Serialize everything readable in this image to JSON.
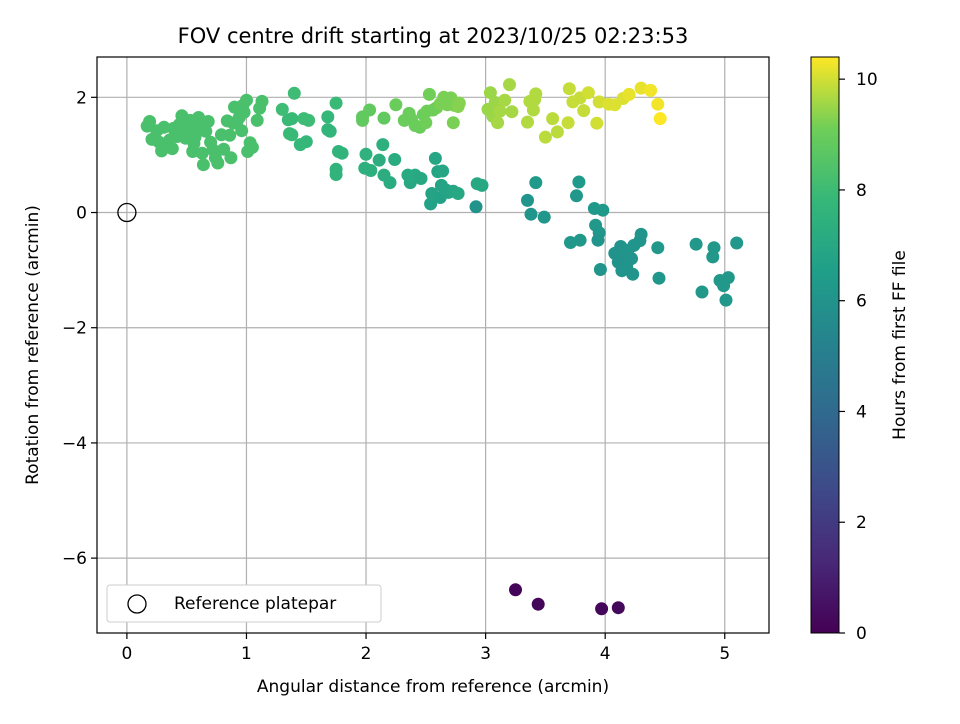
{
  "chart_data": {
    "type": "scatter",
    "title": "FOV centre drift starting at 2023/10/25 02:23:53",
    "xlabel": "Angular distance from reference (arcmin)",
    "ylabel": "Rotation from reference (arcmin)",
    "xlim": [
      -0.25,
      5.37
    ],
    "ylim": [
      -7.3,
      2.7
    ],
    "xticks": [
      0,
      1,
      2,
      3,
      4,
      5
    ],
    "yticks": [
      -6,
      -4,
      -2,
      0,
      2
    ],
    "grid": true,
    "legend": {
      "position": "lower-left",
      "label": "Reference platepar"
    },
    "reference_point": {
      "x": 0,
      "y": 0
    },
    "colorbar": {
      "label": "Hours from first FF file",
      "colormap": "viridis",
      "range": [
        0,
        10.4
      ],
      "ticks": [
        0,
        2,
        4,
        6,
        8,
        10
      ]
    },
    "points": [
      {
        "x": 3.25,
        "y": -6.55,
        "c": 0.1
      },
      {
        "x": 3.44,
        "y": -6.8,
        "c": 0.15
      },
      {
        "x": 3.97,
        "y": -6.88,
        "c": 0.2
      },
      {
        "x": 4.11,
        "y": -6.86,
        "c": 0.25
      },
      {
        "x": 2.92,
        "y": 0.1,
        "c": 6.0
      },
      {
        "x": 3.35,
        "y": 0.21,
        "c": 6.1
      },
      {
        "x": 3.38,
        "y": -0.03,
        "c": 6.1
      },
      {
        "x": 3.49,
        "y": -0.08,
        "c": 6.15
      },
      {
        "x": 3.71,
        "y": -0.52,
        "c": 6.2
      },
      {
        "x": 3.79,
        "y": -0.48,
        "c": 6.2
      },
      {
        "x": 3.76,
        "y": 0.29,
        "c": 6.2
      },
      {
        "x": 3.42,
        "y": 0.52,
        "c": 6.3
      },
      {
        "x": 3.78,
        "y": 0.53,
        "c": 6.3
      },
      {
        "x": 3.91,
        "y": 0.07,
        "c": 6.25
      },
      {
        "x": 3.98,
        "y": 0.04,
        "c": 6.25
      },
      {
        "x": 3.92,
        "y": -0.22,
        "c": 6.2
      },
      {
        "x": 3.95,
        "y": -0.35,
        "c": 6.15
      },
      {
        "x": 3.94,
        "y": -0.48,
        "c": 6.1
      },
      {
        "x": 3.96,
        "y": -0.99,
        "c": 6.1
      },
      {
        "x": 4.08,
        "y": -0.71,
        "c": 6.0
      },
      {
        "x": 4.13,
        "y": -0.59,
        "c": 6.0
      },
      {
        "x": 4.15,
        "y": -0.78,
        "c": 6.0
      },
      {
        "x": 4.11,
        "y": -0.86,
        "c": 6.0
      },
      {
        "x": 4.18,
        "y": -0.95,
        "c": 6.05
      },
      {
        "x": 4.22,
        "y": -0.8,
        "c": 6.05
      },
      {
        "x": 4.14,
        "y": -1.01,
        "c": 6.1
      },
      {
        "x": 4.23,
        "y": -1.07,
        "c": 6.1
      },
      {
        "x": 4.19,
        "y": -0.66,
        "c": 6.05
      },
      {
        "x": 4.24,
        "y": -0.57,
        "c": 6.1
      },
      {
        "x": 4.29,
        "y": -0.49,
        "c": 6.1
      },
      {
        "x": 4.3,
        "y": -0.38,
        "c": 6.1
      },
      {
        "x": 4.44,
        "y": -0.61,
        "c": 6.2
      },
      {
        "x": 4.45,
        "y": -1.14,
        "c": 6.15
      },
      {
        "x": 4.76,
        "y": -0.55,
        "c": 6.2
      },
      {
        "x": 4.81,
        "y": -1.38,
        "c": 6.2
      },
      {
        "x": 4.9,
        "y": -0.77,
        "c": 6.2
      },
      {
        "x": 4.91,
        "y": -0.61,
        "c": 6.2
      },
      {
        "x": 4.96,
        "y": -1.18,
        "c": 6.2
      },
      {
        "x": 4.99,
        "y": -1.27,
        "c": 6.2
      },
      {
        "x": 5.01,
        "y": -1.52,
        "c": 6.2
      },
      {
        "x": 5.03,
        "y": -1.13,
        "c": 6.2
      },
      {
        "x": 5.1,
        "y": -0.53,
        "c": 6.2
      },
      {
        "x": 2.54,
        "y": 0.15,
        "c": 6.7
      },
      {
        "x": 2.55,
        "y": 0.33,
        "c": 6.8
      },
      {
        "x": 2.58,
        "y": 0.94,
        "c": 6.9
      },
      {
        "x": 2.6,
        "y": 0.71,
        "c": 6.8
      },
      {
        "x": 2.62,
        "y": 0.26,
        "c": 6.7
      },
      {
        "x": 2.63,
        "y": 0.47,
        "c": 6.8
      },
      {
        "x": 2.64,
        "y": 0.72,
        "c": 6.9
      },
      {
        "x": 2.67,
        "y": 0.39,
        "c": 6.8
      },
      {
        "x": 2.69,
        "y": 0.35,
        "c": 6.8
      },
      {
        "x": 2.73,
        "y": 0.37,
        "c": 6.9
      },
      {
        "x": 2.77,
        "y": 0.33,
        "c": 7.0
      },
      {
        "x": 2.93,
        "y": 0.5,
        "c": 7.0
      },
      {
        "x": 2.97,
        "y": 0.47,
        "c": 7.0
      },
      {
        "x": 2.37,
        "y": 0.52,
        "c": 7.0
      },
      {
        "x": 2.35,
        "y": 0.65,
        "c": 7.1
      },
      {
        "x": 2.41,
        "y": 0.65,
        "c": 7.1
      },
      {
        "x": 2.46,
        "y": 0.59,
        "c": 7.0
      },
      {
        "x": 2.24,
        "y": 0.92,
        "c": 7.2
      },
      {
        "x": 2.2,
        "y": 0.52,
        "c": 7.2
      },
      {
        "x": 2.15,
        "y": 0.65,
        "c": 7.3
      },
      {
        "x": 2.11,
        "y": 0.91,
        "c": 7.3
      },
      {
        "x": 2.14,
        "y": 1.18,
        "c": 7.4
      },
      {
        "x": 2.04,
        "y": 0.73,
        "c": 7.4
      },
      {
        "x": 1.99,
        "y": 0.77,
        "c": 7.4
      },
      {
        "x": 2.0,
        "y": 1.01,
        "c": 7.5
      },
      {
        "x": 1.8,
        "y": 1.03,
        "c": 7.6
      },
      {
        "x": 1.77,
        "y": 1.06,
        "c": 7.6
      },
      {
        "x": 1.75,
        "y": 0.66,
        "c": 7.6
      },
      {
        "x": 1.75,
        "y": 0.75,
        "c": 7.6
      },
      {
        "x": 1.7,
        "y": 1.41,
        "c": 7.7
      },
      {
        "x": 1.68,
        "y": 1.44,
        "c": 7.7
      },
      {
        "x": 1.68,
        "y": 1.66,
        "c": 7.8
      },
      {
        "x": 1.75,
        "y": 1.9,
        "c": 7.9
      },
      {
        "x": 1.5,
        "y": 1.23,
        "c": 7.8
      },
      {
        "x": 1.45,
        "y": 1.18,
        "c": 7.8
      },
      {
        "x": 1.38,
        "y": 1.35,
        "c": 7.9
      },
      {
        "x": 1.36,
        "y": 1.37,
        "c": 7.9
      },
      {
        "x": 1.35,
        "y": 1.61,
        "c": 7.9
      },
      {
        "x": 1.38,
        "y": 1.63,
        "c": 7.9
      },
      {
        "x": 1.3,
        "y": 1.79,
        "c": 8.0
      },
      {
        "x": 1.4,
        "y": 2.07,
        "c": 8.0
      },
      {
        "x": 1.48,
        "y": 1.63,
        "c": 8.0
      },
      {
        "x": 1.52,
        "y": 1.6,
        "c": 8.0
      },
      {
        "x": 0.17,
        "y": 1.5,
        "c": 8.3
      },
      {
        "x": 0.19,
        "y": 1.58,
        "c": 8.3
      },
      {
        "x": 0.21,
        "y": 1.27,
        "c": 8.3
      },
      {
        "x": 0.25,
        "y": 1.42,
        "c": 8.3
      },
      {
        "x": 0.27,
        "y": 1.22,
        "c": 8.3
      },
      {
        "x": 0.29,
        "y": 1.07,
        "c": 8.3
      },
      {
        "x": 0.31,
        "y": 1.48,
        "c": 8.3
      },
      {
        "x": 0.33,
        "y": 1.15,
        "c": 8.3
      },
      {
        "x": 0.36,
        "y": 1.26,
        "c": 8.3
      },
      {
        "x": 0.38,
        "y": 1.11,
        "c": 8.3
      },
      {
        "x": 0.39,
        "y": 1.46,
        "c": 8.3
      },
      {
        "x": 0.42,
        "y": 1.32,
        "c": 8.3
      },
      {
        "x": 0.44,
        "y": 1.53,
        "c": 8.3
      },
      {
        "x": 0.46,
        "y": 1.4,
        "c": 8.3
      },
      {
        "x": 0.46,
        "y": 1.68,
        "c": 8.3
      },
      {
        "x": 0.49,
        "y": 1.29,
        "c": 8.3
      },
      {
        "x": 0.51,
        "y": 1.45,
        "c": 8.3
      },
      {
        "x": 0.53,
        "y": 1.6,
        "c": 8.3
      },
      {
        "x": 0.55,
        "y": 1.06,
        "c": 8.3
      },
      {
        "x": 0.56,
        "y": 1.2,
        "c": 8.3
      },
      {
        "x": 0.58,
        "y": 1.38,
        "c": 8.3
      },
      {
        "x": 0.6,
        "y": 1.65,
        "c": 8.3
      },
      {
        "x": 0.61,
        "y": 1.5,
        "c": 8.3
      },
      {
        "x": 0.63,
        "y": 1.03,
        "c": 8.3
      },
      {
        "x": 0.64,
        "y": 0.83,
        "c": 8.3
      },
      {
        "x": 0.66,
        "y": 1.41,
        "c": 8.3
      },
      {
        "x": 0.68,
        "y": 1.58,
        "c": 8.3
      },
      {
        "x": 0.7,
        "y": 1.22,
        "c": 8.3
      },
      {
        "x": 0.72,
        "y": 1.09,
        "c": 8.3
      },
      {
        "x": 0.74,
        "y": 0.95,
        "c": 8.3
      },
      {
        "x": 0.76,
        "y": 0.86,
        "c": 8.3
      },
      {
        "x": 0.79,
        "y": 1.35,
        "c": 8.3
      },
      {
        "x": 0.81,
        "y": 1.1,
        "c": 8.3
      },
      {
        "x": 0.84,
        "y": 1.59,
        "c": 8.3
      },
      {
        "x": 0.86,
        "y": 1.34,
        "c": 8.3
      },
      {
        "x": 0.87,
        "y": 0.95,
        "c": 8.3
      },
      {
        "x": 0.89,
        "y": 1.55,
        "c": 8.3
      },
      {
        "x": 0.92,
        "y": 1.58,
        "c": 8.3
      },
      {
        "x": 0.9,
        "y": 1.83,
        "c": 8.3
      },
      {
        "x": 0.94,
        "y": 1.65,
        "c": 8.3
      },
      {
        "x": 0.96,
        "y": 1.42,
        "c": 8.3
      },
      {
        "x": 0.97,
        "y": 1.86,
        "c": 8.3
      },
      {
        "x": 1.01,
        "y": 1.06,
        "c": 8.3
      },
      {
        "x": 1.03,
        "y": 1.21,
        "c": 8.3
      },
      {
        "x": 1.05,
        "y": 1.13,
        "c": 8.3
      },
      {
        "x": 1.09,
        "y": 1.6,
        "c": 8.3
      },
      {
        "x": 1.11,
        "y": 1.81,
        "c": 8.3
      },
      {
        "x": 1.13,
        "y": 1.93,
        "c": 8.3
      },
      {
        "x": 1.0,
        "y": 1.95,
        "c": 8.3
      },
      {
        "x": 0.98,
        "y": 1.74,
        "c": 8.3
      },
      {
        "x": 0.55,
        "y": 1.58,
        "c": 8.3
      },
      {
        "x": 0.57,
        "y": 1.31,
        "c": 8.3
      },
      {
        "x": 1.97,
        "y": 1.6,
        "c": 8.8
      },
      {
        "x": 1.97,
        "y": 1.66,
        "c": 8.8
      },
      {
        "x": 2.03,
        "y": 1.78,
        "c": 8.8
      },
      {
        "x": 2.15,
        "y": 1.64,
        "c": 8.8
      },
      {
        "x": 2.25,
        "y": 1.87,
        "c": 9.0
      },
      {
        "x": 2.32,
        "y": 1.6,
        "c": 9.0
      },
      {
        "x": 2.36,
        "y": 1.72,
        "c": 9.0
      },
      {
        "x": 2.38,
        "y": 1.62,
        "c": 9.0
      },
      {
        "x": 2.41,
        "y": 1.51,
        "c": 9.0
      },
      {
        "x": 2.45,
        "y": 1.48,
        "c": 9.0
      },
      {
        "x": 2.48,
        "y": 1.7,
        "c": 9.0
      },
      {
        "x": 2.5,
        "y": 1.56,
        "c": 9.1
      },
      {
        "x": 2.51,
        "y": 1.76,
        "c": 9.1
      },
      {
        "x": 2.53,
        "y": 2.05,
        "c": 9.1
      },
      {
        "x": 2.56,
        "y": 1.78,
        "c": 9.1
      },
      {
        "x": 2.59,
        "y": 1.82,
        "c": 9.1
      },
      {
        "x": 2.62,
        "y": 1.89,
        "c": 9.2
      },
      {
        "x": 2.65,
        "y": 2.0,
        "c": 9.2
      },
      {
        "x": 2.68,
        "y": 1.87,
        "c": 9.2
      },
      {
        "x": 2.71,
        "y": 1.99,
        "c": 9.2
      },
      {
        "x": 2.74,
        "y": 1.86,
        "c": 9.2
      },
      {
        "x": 2.73,
        "y": 1.56,
        "c": 9.2
      },
      {
        "x": 2.77,
        "y": 1.84,
        "c": 9.3
      },
      {
        "x": 2.78,
        "y": 1.9,
        "c": 9.3
      },
      {
        "x": 3.02,
        "y": 1.79,
        "c": 9.5
      },
      {
        "x": 3.04,
        "y": 2.08,
        "c": 9.5
      },
      {
        "x": 3.06,
        "y": 1.67,
        "c": 9.5
      },
      {
        "x": 3.08,
        "y": 1.91,
        "c": 9.5
      },
      {
        "x": 3.1,
        "y": 1.56,
        "c": 9.6
      },
      {
        "x": 3.12,
        "y": 1.76,
        "c": 9.6
      },
      {
        "x": 3.16,
        "y": 1.95,
        "c": 9.6
      },
      {
        "x": 3.2,
        "y": 2.22,
        "c": 9.6
      },
      {
        "x": 3.22,
        "y": 1.75,
        "c": 9.6
      },
      {
        "x": 3.35,
        "y": 1.57,
        "c": 9.7
      },
      {
        "x": 3.37,
        "y": 1.93,
        "c": 9.7
      },
      {
        "x": 3.4,
        "y": 1.78,
        "c": 9.7
      },
      {
        "x": 3.42,
        "y": 2.06,
        "c": 9.7
      },
      {
        "x": 3.41,
        "y": 1.96,
        "c": 9.7
      },
      {
        "x": 3.5,
        "y": 1.31,
        "c": 9.8
      },
      {
        "x": 3.56,
        "y": 1.63,
        "c": 9.8
      },
      {
        "x": 3.6,
        "y": 1.4,
        "c": 9.8
      },
      {
        "x": 3.69,
        "y": 1.56,
        "c": 9.9
      },
      {
        "x": 3.7,
        "y": 2.15,
        "c": 9.9
      },
      {
        "x": 3.73,
        "y": 1.92,
        "c": 9.9
      },
      {
        "x": 3.79,
        "y": 1.99,
        "c": 9.9
      },
      {
        "x": 3.82,
        "y": 1.77,
        "c": 9.9
      },
      {
        "x": 3.86,
        "y": 2.08,
        "c": 10.0
      },
      {
        "x": 3.93,
        "y": 1.55,
        "c": 10.0
      },
      {
        "x": 3.95,
        "y": 1.92,
        "c": 10.0
      },
      {
        "x": 4.03,
        "y": 1.88,
        "c": 10.1
      },
      {
        "x": 4.08,
        "y": 1.87,
        "c": 10.1
      },
      {
        "x": 4.15,
        "y": 1.98,
        "c": 10.1
      },
      {
        "x": 4.2,
        "y": 2.05,
        "c": 10.2
      },
      {
        "x": 4.3,
        "y": 2.16,
        "c": 10.2
      },
      {
        "x": 4.38,
        "y": 2.12,
        "c": 10.3
      },
      {
        "x": 4.44,
        "y": 1.88,
        "c": 10.3
      },
      {
        "x": 4.46,
        "y": 1.63,
        "c": 10.4
      }
    ]
  }
}
